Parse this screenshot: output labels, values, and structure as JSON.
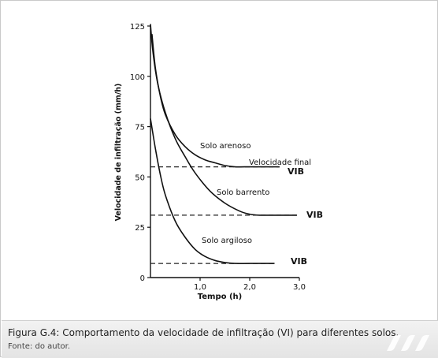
{
  "caption": {
    "title": "Figura G.4: Comportamento da velocidade de infiltração (VI) para diferentes solos.",
    "source": "Fonte: do autor."
  },
  "chart_data": {
    "type": "line",
    "title": "",
    "xlabel": "Tempo (h)",
    "ylabel": "Velocidade de infiltração (mm/h)",
    "xlim": [
      0,
      3.0
    ],
    "ylim": [
      0,
      125
    ],
    "x_ticks": [
      "1,0",
      "2,0",
      "3,0"
    ],
    "x_tick_values": [
      1.0,
      2.0,
      3.0
    ],
    "y_ticks": [
      "0",
      "25",
      "50",
      "75",
      "100",
      "125"
    ],
    "y_tick_values": [
      0,
      25,
      50,
      75,
      100,
      125
    ],
    "grid": false,
    "series": [
      {
        "name": "Solo arenoso",
        "x": [
          0.03,
          0.1,
          0.2,
          0.3,
          0.5,
          0.7,
          0.9,
          1.1,
          1.3,
          1.5,
          1.7,
          1.9,
          2.3,
          2.6
        ],
        "y": [
          121,
          104,
          90,
          81,
          71,
          65,
          61,
          58.5,
          57,
          55.7,
          55,
          55,
          55,
          55
        ]
      },
      {
        "name": "Solo barrento",
        "x": [
          0.0,
          0.05,
          0.15,
          0.3,
          0.5,
          0.7,
          0.9,
          1.2,
          1.5,
          1.8,
          2.0,
          2.2,
          2.5,
          2.95
        ],
        "y": [
          126,
          112,
          96,
          82,
          69,
          60,
          52,
          43,
          37,
          33,
          31.5,
          31,
          31,
          31
        ]
      },
      {
        "name": "Solo argiloso",
        "x": [
          0.0,
          0.1,
          0.2,
          0.3,
          0.5,
          0.7,
          0.9,
          1.1,
          1.3,
          1.5,
          1.7,
          2.0,
          2.5
        ],
        "y": [
          79,
          64,
          51,
          41,
          28,
          20,
          14,
          10.5,
          8.5,
          7.5,
          7,
          7,
          7
        ]
      }
    ],
    "reference_lines": [
      {
        "y": 55,
        "x": [
          0.0,
          2.6
        ],
        "label": "VIB"
      },
      {
        "y": 31,
        "x": [
          0.0,
          2.95
        ],
        "label": "VIB"
      },
      {
        "y": 7,
        "x": [
          0.0,
          2.5
        ],
        "label": "VIB"
      }
    ],
    "annotations": {
      "arenoso": "Solo arenoso",
      "barrento": "Solo barrento",
      "argiloso": "Solo argiloso",
      "final": "Velocidade final",
      "vib": "VIB"
    }
  }
}
